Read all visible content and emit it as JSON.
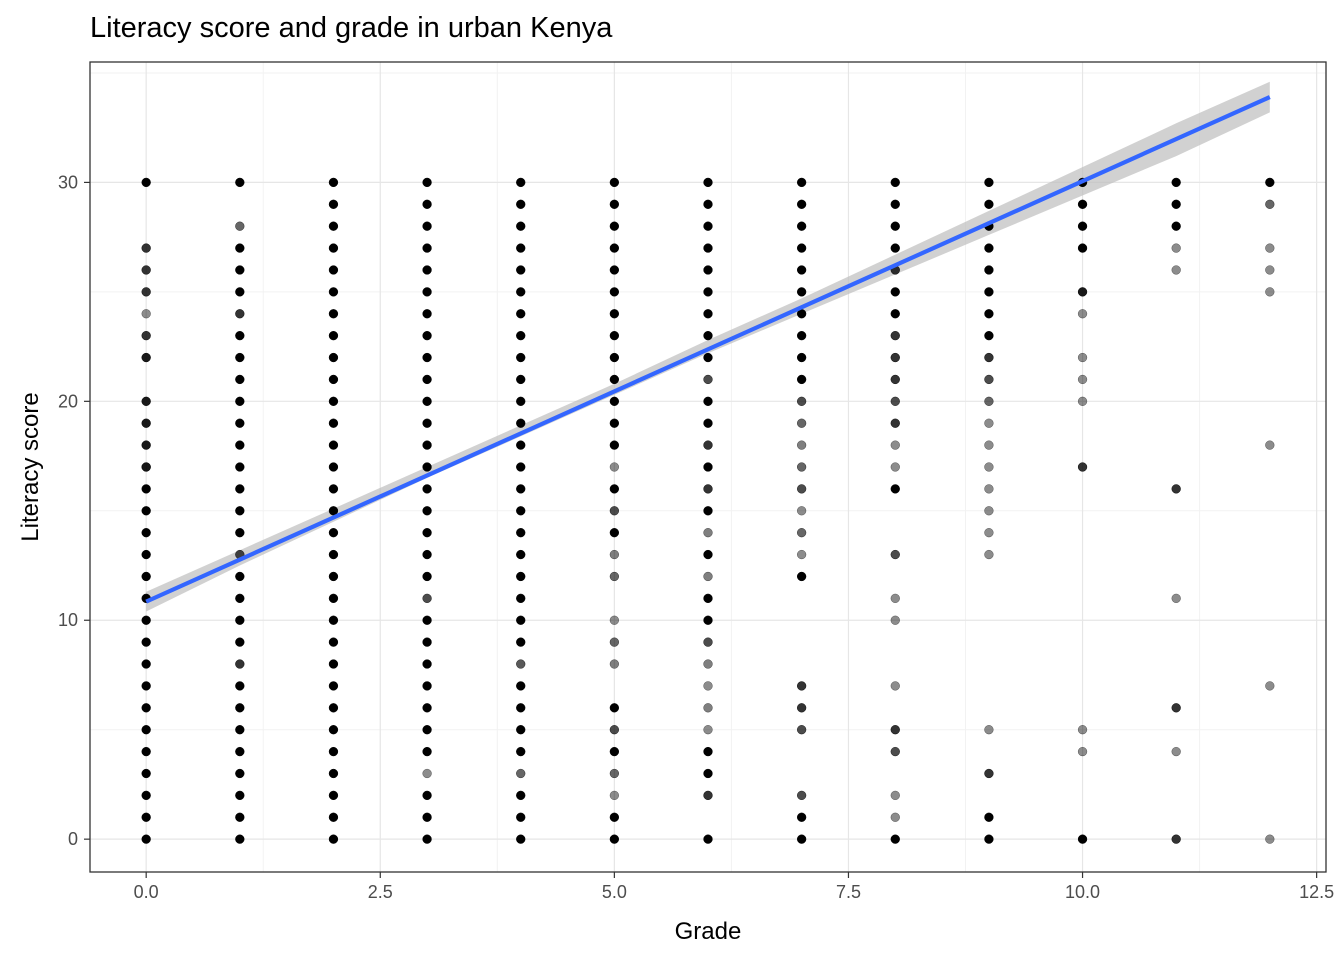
{
  "chart_data": {
    "type": "scatter",
    "title": "Literacy score and grade in urban Kenya",
    "xlabel": "Grade",
    "ylabel": "Literacy score",
    "xlim": [
      -0.6,
      12.6
    ],
    "ylim": [
      -1.5,
      35.5
    ],
    "x_ticks": [
      0.0,
      2.5,
      5.0,
      7.5,
      10.0,
      12.5
    ],
    "x_tick_labels": [
      "0.0",
      "2.5",
      "5.0",
      "7.5",
      "10.0",
      "12.5"
    ],
    "y_ticks": [
      0,
      10,
      20,
      30
    ],
    "y_tick_labels": [
      "0",
      "10",
      "20",
      "30"
    ],
    "grid": true,
    "legend": "none",
    "point_color": "#000000",
    "line_color": "#3366ff",
    "band_color": "#bdbdbd",
    "points": [
      {
        "x": 0,
        "scores": [
          30,
          27,
          26,
          25,
          23,
          22,
          20,
          19,
          18,
          17,
          16,
          15,
          14,
          13,
          12,
          11,
          10,
          9,
          8,
          7,
          6,
          5,
          4,
          3,
          2,
          1,
          0
        ],
        "opacity": [
          1,
          0.8,
          0.8,
          0.8,
          0.8,
          0.9,
          0.9,
          0.9,
          0.9,
          0.8,
          1,
          1,
          1,
          1,
          1,
          1,
          1,
          1,
          1,
          1,
          1,
          1,
          1,
          1,
          1,
          1,
          1
        ]
      },
      {
        "x": 0,
        "scores": [
          24,
          17
        ],
        "opacity": [
          0.45,
          0.55
        ]
      },
      {
        "x": 1,
        "scores": [
          30,
          28,
          27,
          26,
          25,
          24,
          23,
          22,
          21,
          20,
          19,
          18,
          17,
          16,
          15,
          14,
          13,
          12,
          11,
          10,
          9,
          8,
          7,
          6,
          5,
          4,
          3,
          2,
          1,
          0
        ],
        "opacity": [
          1,
          0.6,
          1,
          1,
          1,
          0.8,
          1,
          1,
          1,
          1,
          1,
          1,
          1,
          1,
          1,
          1,
          0.7,
          1,
          1,
          1,
          1,
          0.8,
          1,
          1,
          1,
          1,
          1,
          1,
          1,
          1
        ]
      },
      {
        "x": 2,
        "scores": [
          30,
          29,
          28,
          27,
          26,
          25,
          24,
          23,
          22,
          21,
          20,
          19,
          18,
          17,
          16,
          15,
          14,
          13,
          12,
          11,
          10,
          9,
          8,
          7,
          6,
          5,
          4,
          3,
          2,
          1,
          0
        ],
        "opacity": [
          1,
          1,
          1,
          1,
          1,
          1,
          1,
          1,
          1,
          1,
          1,
          1,
          1,
          1,
          1,
          1,
          1,
          1,
          1,
          1,
          1,
          1,
          1,
          1,
          1,
          1,
          1,
          1,
          1,
          1,
          1
        ]
      },
      {
        "x": 3,
        "scores": [
          30,
          29,
          28,
          27,
          26,
          25,
          24,
          23,
          22,
          21,
          20,
          19,
          18,
          17,
          16,
          15,
          14,
          13,
          12,
          11,
          10,
          9,
          8,
          7,
          6,
          5,
          4,
          3,
          2,
          1,
          0
        ],
        "opacity": [
          1,
          1,
          1,
          1,
          1,
          1,
          1,
          1,
          1,
          1,
          1,
          1,
          1,
          1,
          1,
          1,
          1,
          1,
          1,
          0.7,
          1,
          1,
          1,
          1,
          1,
          1,
          1,
          0.45,
          1,
          1,
          1
        ]
      },
      {
        "x": 4,
        "scores": [
          30,
          29,
          28,
          27,
          26,
          25,
          24,
          23,
          22,
          21,
          20,
          19,
          18,
          17,
          16,
          15,
          14,
          13,
          12,
          11,
          10,
          9,
          8,
          7,
          6,
          5,
          4,
          3,
          2,
          1,
          0
        ],
        "opacity": [
          1,
          1,
          1,
          1,
          1,
          1,
          1,
          1,
          1,
          1,
          1,
          1,
          1,
          1,
          1,
          1,
          1,
          1,
          1,
          1,
          1,
          1,
          0.65,
          1,
          1,
          1,
          1,
          0.6,
          1,
          1,
          1
        ]
      },
      {
        "x": 5,
        "scores": [
          30,
          29,
          28,
          27,
          26,
          25,
          24,
          23,
          22,
          21,
          20,
          19,
          18,
          17,
          16,
          15,
          14,
          13,
          12,
          10,
          9,
          8,
          6,
          5,
          4,
          3,
          2,
          1,
          0
        ],
        "opacity": [
          1,
          1,
          1,
          1,
          1,
          1,
          1,
          1,
          1,
          1,
          1,
          1,
          1,
          0.45,
          1,
          0.7,
          1,
          0.5,
          0.6,
          0.45,
          0.6,
          0.5,
          1,
          0.7,
          1,
          0.6,
          0.45,
          1,
          1
        ]
      },
      {
        "x": 6,
        "scores": [
          30,
          29,
          28,
          27,
          26,
          25,
          24,
          23,
          22,
          21,
          20,
          19,
          18,
          17,
          16,
          15,
          14,
          13,
          12,
          11,
          10,
          9,
          8,
          7,
          6,
          5,
          4,
          3,
          2,
          0
        ],
        "opacity": [
          1,
          1,
          1,
          1,
          1,
          1,
          1,
          1,
          1,
          0.7,
          1,
          1,
          0.8,
          1,
          0.8,
          1,
          0.5,
          1,
          0.5,
          1,
          1,
          0.7,
          0.5,
          0.45,
          0.5,
          0.45,
          1,
          1,
          0.8,
          1
        ]
      },
      {
        "x": 7,
        "scores": [
          30,
          29,
          28,
          27,
          26,
          25,
          24,
          23,
          22,
          21,
          20,
          19,
          18,
          17,
          16,
          15,
          14,
          13,
          12,
          7,
          6,
          5,
          2,
          1,
          0
        ],
        "opacity": [
          1,
          1,
          1,
          1,
          1,
          1,
          1,
          1,
          1,
          1,
          0.7,
          0.6,
          0.5,
          0.6,
          0.7,
          0.45,
          0.6,
          0.45,
          1,
          0.8,
          0.8,
          0.7,
          0.7,
          1,
          1
        ]
      },
      {
        "x": 8,
        "scores": [
          30,
          29,
          28,
          27,
          26,
          25,
          24,
          23,
          22,
          21,
          20,
          19,
          18,
          17,
          16,
          13,
          11,
          10,
          7,
          5,
          4,
          2,
          1,
          0
        ],
        "opacity": [
          1,
          1,
          1,
          1,
          0.8,
          1,
          1,
          0.8,
          0.8,
          0.8,
          0.7,
          0.8,
          0.45,
          0.45,
          1,
          0.7,
          0.45,
          0.45,
          0.45,
          0.8,
          0.7,
          0.45,
          0.45,
          1
        ]
      },
      {
        "x": 9,
        "scores": [
          30,
          29,
          28,
          27,
          26,
          25,
          24,
          23,
          22,
          21,
          20,
          19,
          18,
          17,
          16,
          15,
          14,
          13,
          5,
          3,
          1,
          0
        ],
        "opacity": [
          1,
          1,
          1,
          1,
          1,
          1,
          1,
          1,
          0.8,
          0.7,
          0.6,
          0.45,
          0.45,
          0.45,
          0.45,
          0.45,
          0.45,
          0.45,
          0.45,
          0.8,
          1,
          1
        ]
      },
      {
        "x": 10,
        "scores": [
          30,
          29,
          28,
          27,
          25,
          24,
          22,
          21,
          20,
          17,
          5,
          4,
          0
        ],
        "opacity": [
          1,
          1,
          1,
          1,
          0.9,
          0.45,
          0.45,
          0.45,
          0.45,
          0.8,
          0.45,
          0.45,
          1
        ]
      },
      {
        "x": 11,
        "scores": [
          30,
          29,
          28,
          27,
          26,
          16,
          11,
          6,
          4,
          0
        ],
        "opacity": [
          1,
          1,
          1,
          0.45,
          0.45,
          0.8,
          0.45,
          0.8,
          0.45,
          0.8
        ]
      },
      {
        "x": 12,
        "scores": [
          30,
          29,
          27,
          26,
          25,
          18,
          7,
          0
        ],
        "opacity": [
          1,
          0.6,
          0.45,
          0.45,
          0.45,
          0.45,
          0.45,
          0.45
        ]
      }
    ],
    "fit_line": {
      "x": [
        0,
        12
      ],
      "y": [
        10.85,
        33.9
      ]
    },
    "confidence_band": {
      "x": [
        0,
        1,
        2,
        3,
        4,
        5,
        6,
        7,
        8,
        9,
        10,
        11,
        12
      ],
      "lower": [
        10.4,
        12.5,
        14.5,
        16.5,
        18.4,
        20.3,
        22.2,
        24.0,
        25.8,
        27.6,
        29.4,
        31.2,
        33.2
      ],
      "upper": [
        11.3,
        13.2,
        15.1,
        17.0,
        18.9,
        20.8,
        22.8,
        24.7,
        26.7,
        28.7,
        30.7,
        32.7,
        34.6
      ]
    }
  }
}
